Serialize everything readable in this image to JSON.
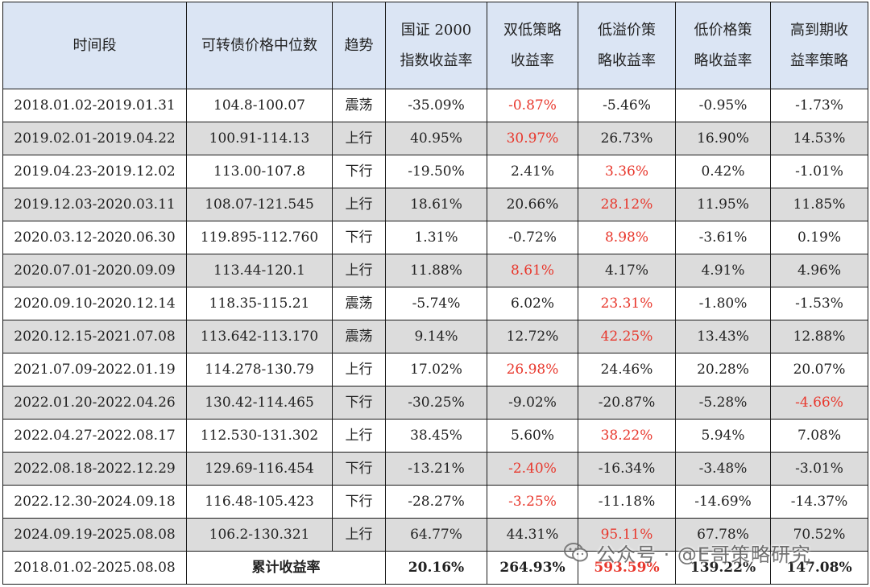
{
  "columns": [
    "时间段",
    "可转债价格中位数",
    "趋势",
    [
      "国证 2000",
      "指数收益率"
    ],
    [
      "双低策略",
      "收益率"
    ],
    [
      "低溢价策",
      "略收益率"
    ],
    [
      "低价格策",
      "略收益率"
    ],
    [
      "高到期收",
      "益率策略"
    ]
  ],
  "rows": [
    {
      "period": "2018.01.02-2019.01.31",
      "median": "104.8-100.07",
      "trend": "震荡",
      "idx": "-35.09%",
      "dlow": "-0.87%",
      "lowprem": "-5.46%",
      "lowprice": "-0.95%",
      "ytm": "-1.73%",
      "best": "dlow"
    },
    {
      "period": "2019.02.01-2019.04.22",
      "median": "100.91-114.13",
      "trend": "上行",
      "idx": "40.95%",
      "dlow": "30.97%",
      "lowprem": "26.73%",
      "lowprice": "16.90%",
      "ytm": "14.53%",
      "best": "dlow"
    },
    {
      "period": "2019.04.23-2019.12.02",
      "median": "113.00-107.8",
      "trend": "下行",
      "idx": "-19.50%",
      "dlow": "2.41%",
      "lowprem": "3.36%",
      "lowprice": "0.42%",
      "ytm": "-1.01%",
      "best": "lowprem"
    },
    {
      "period": "2019.12.03-2020.03.11",
      "median": "108.07-121.545",
      "trend": "上行",
      "idx": "18.61%",
      "dlow": "20.66%",
      "lowprem": "28.12%",
      "lowprice": "11.95%",
      "ytm": "11.85%",
      "best": "lowprem"
    },
    {
      "period": "2020.03.12-2020.06.30",
      "median": "119.895-112.760",
      "trend": "下行",
      "idx": "1.31%",
      "dlow": "-0.72%",
      "lowprem": "8.98%",
      "lowprice": "-3.61%",
      "ytm": "0.19%",
      "best": "lowprem"
    },
    {
      "period": "2020.07.01-2020.09.09",
      "median": "113.44-120.1",
      "trend": "上行",
      "idx": "11.88%",
      "dlow": "8.61%",
      "lowprem": "4.17%",
      "lowprice": "4.91%",
      "ytm": "4.96%",
      "best": "dlow"
    },
    {
      "period": "2020.09.10-2020.12.14",
      "median": "118.35-115.21",
      "trend": "震荡",
      "idx": "-5.74%",
      "dlow": "6.02%",
      "lowprem": "23.31%",
      "lowprice": "-1.80%",
      "ytm": "-1.53%",
      "best": "lowprem"
    },
    {
      "period": "2020.12.15-2021.07.08",
      "median": "113.642-113.170",
      "trend": "震荡",
      "idx": "9.14%",
      "dlow": "12.72%",
      "lowprem": "42.25%",
      "lowprice": "13.43%",
      "ytm": "12.88%",
      "best": "lowprem"
    },
    {
      "period": "2021.07.09-2022.01.19",
      "median": "114.278-130.79",
      "trend": "上行",
      "idx": "17.02%",
      "dlow": "26.98%",
      "lowprem": "24.46%",
      "lowprice": "20.28%",
      "ytm": "20.07%",
      "best": "dlow"
    },
    {
      "period": "2022.01.20-2022.04.26",
      "median": "130.42-114.465",
      "trend": "下行",
      "idx": "-30.25%",
      "dlow": "-9.02%",
      "lowprem": "-20.87%",
      "lowprice": "-5.28%",
      "ytm": "-4.66%",
      "best": "ytm"
    },
    {
      "period": "2022.04.27-2022.08.17",
      "median": "112.530-131.302",
      "trend": "上行",
      "idx": "38.45%",
      "dlow": "5.60%",
      "lowprem": "38.22%",
      "lowprice": "5.94%",
      "ytm": "7.08%",
      "best": "lowprem"
    },
    {
      "period": "2022.08.18-2022.12.29",
      "median": "129.69-116.454",
      "trend": "下行",
      "idx": "-13.21%",
      "dlow": "-2.40%",
      "lowprem": "-16.34%",
      "lowprice": "-3.48%",
      "ytm": "-3.01%",
      "best": "dlow"
    },
    {
      "period": "2022.12.30-2024.09.18",
      "median": "116.48-105.423",
      "trend": "下行",
      "idx": "-28.27%",
      "dlow": "-3.25%",
      "lowprem": "-11.18%",
      "lowprice": "-14.69%",
      "ytm": "-14.37%",
      "best": "dlow"
    },
    {
      "period": "2024.09.19-2025.08.08",
      "median": "106.2-130.321",
      "trend": "上行",
      "idx": "64.77%",
      "dlow": "44.31%",
      "lowprem": "95.11%",
      "lowprice": "67.78%",
      "ytm": "70.52%",
      "best": "lowprem"
    }
  ],
  "total": {
    "period": "2018.01.02-2025.08.08",
    "label": "累计收益率",
    "idx": "20.16%",
    "dlow": "264.93%",
    "lowprem": "593.59%",
    "lowprice": "139.22%",
    "ytm": "147.08%",
    "best": "lowprem"
  },
  "watermark": "公众号 · @E哥策略研究",
  "colors": {
    "header_bg": "#dbe5f4",
    "shaded_row_bg": "#dcdcdc",
    "highlight_text": "#e8372c",
    "grid": "#1a1a1a"
  }
}
